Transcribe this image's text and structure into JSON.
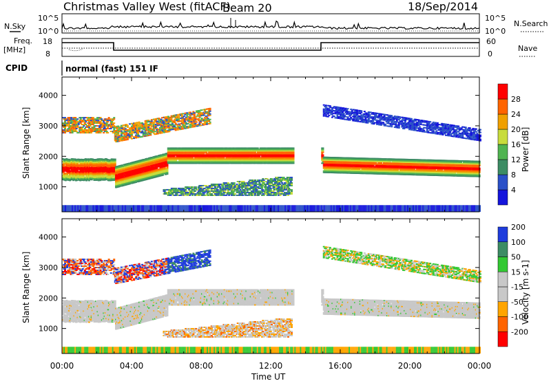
{
  "header": {
    "station": "Christmas Valley West (fitACF)",
    "beam": "Beam 20",
    "date": "18/Sep/2014"
  },
  "panels": {
    "nsky": {
      "label": "N.Sky",
      "tick_top": "10^5",
      "tick_bottom": "10^0",
      "right_label": "N.Search",
      "right_tick_top": "10^5",
      "right_tick_bottom": "10^0"
    },
    "freq": {
      "label_line1": "Freq.",
      "label_line2": "[MHz]",
      "tick_top": "18",
      "tick_bottom": "8",
      "right_label": "Nave",
      "right_tick_top": "60",
      "right_tick_bottom": "0"
    },
    "cpid": {
      "label": "CPID",
      "mode": "normal (fast) 151 IF"
    }
  },
  "colors": {
    "power_scale": [
      "#1414dc",
      "#2a50c8",
      "#3c8c64",
      "#50b450",
      "#c8dc3c",
      "#f0a000",
      "#ff6400",
      "#ff0000"
    ],
    "velocity_scale": [
      "#ff0000",
      "#ff6400",
      "#ffa500",
      "#c8c8c8",
      "#c8c8c8",
      "#32c832",
      "#3c8c64",
      "#1e3cdc"
    ]
  },
  "chart_data": [
    {
      "type": "heatmap",
      "name": "power",
      "ylabel": "Slant Range [km]",
      "xlabel": "",
      "yticks": [
        "1000",
        "2000",
        "3000",
        "4000"
      ],
      "yrange": [
        180,
        4600
      ],
      "colorbar_label": "Power [dB]",
      "colorbar_ticks": [
        "4",
        "8",
        "12",
        "16",
        "20",
        "24",
        "28"
      ],
      "colorbar_range": [
        0,
        32
      ]
    },
    {
      "type": "heatmap",
      "name": "velocity",
      "ylabel": "Slant Range [km]",
      "xlabel": "Time UT",
      "yticks": [
        "1000",
        "2000",
        "3000",
        "4000"
      ],
      "yrange": [
        180,
        4600
      ],
      "colorbar_label": "Velocity [m s-1]",
      "colorbar_ticks": [
        "-200",
        "-100",
        "-50",
        "-15",
        "15",
        "50",
        "100",
        "200"
      ]
    }
  ],
  "x_axis": {
    "ticks": [
      "00:00",
      "04:00",
      "08:00",
      "12:00",
      "16:00",
      "20:00",
      "00:00"
    ],
    "label": "Time UT",
    "range_hours": [
      0,
      24
    ]
  }
}
